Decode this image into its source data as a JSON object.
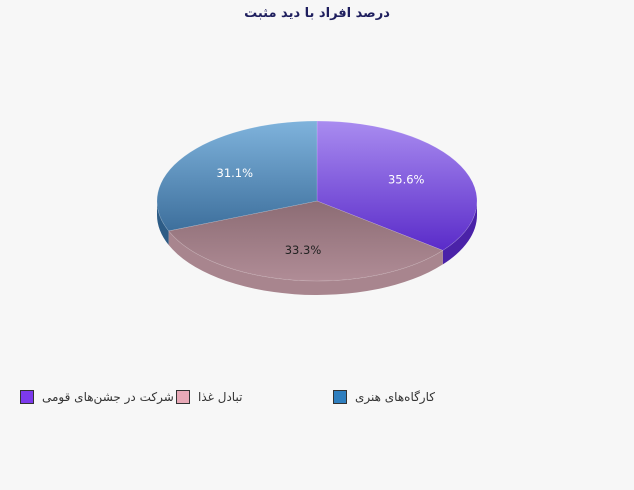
{
  "chart_data": {
    "type": "pie",
    "title": "درصد افراد با دید مثبت",
    "slices": [
      {
        "label": "شرکت در جشن‌های قومی",
        "value": 35.6,
        "display": "35.6%",
        "color": "#7c3aed"
      },
      {
        "label": "تبادل غذا",
        "value": 33.3,
        "display": "33.3%",
        "color": "#e8a9b7"
      },
      {
        "label": "کارگاه‌های هنری",
        "value": 31.1,
        "display": "31.1%",
        "color": "#2f7fbf"
      }
    ],
    "legend_position": "bottom",
    "three_d": true
  }
}
